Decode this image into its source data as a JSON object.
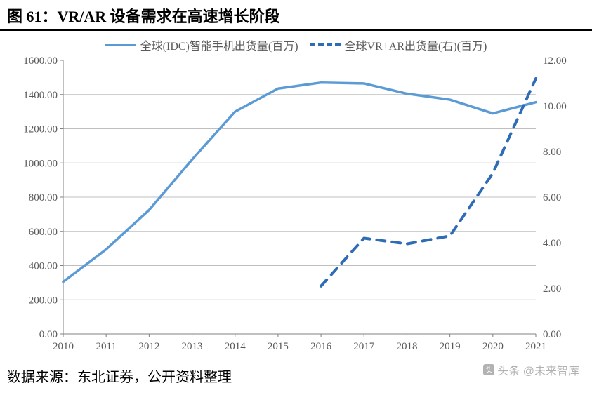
{
  "title": "图 61：VR/AR 设备需求在高速增长阶段",
  "source": "数据来源：东北证券，公开资料整理",
  "watermark": "头条 @未来智库",
  "chart": {
    "type": "line-dual-axis",
    "background_color": "#ffffff",
    "grid_color": "#bfbfbf",
    "axis_color": "#808080",
    "text_color": "#595959",
    "label_fontsize": 15,
    "legend_fontsize": 16,
    "categories": [
      "2010",
      "2011",
      "2012",
      "2013",
      "2014",
      "2015",
      "2016",
      "2017",
      "2018",
      "2019",
      "2020",
      "2021"
    ],
    "left_axis": {
      "min": 0,
      "max": 1600,
      "tick_step": 200,
      "tick_format": "0.00"
    },
    "right_axis": {
      "min": 0,
      "max": 12,
      "tick_step": 2,
      "tick_format": "0.00"
    },
    "series": [
      {
        "id": "smartphone",
        "axis": "left",
        "label": "全球(IDC)智能手机出货量(百万)",
        "color": "#5b9bd5",
        "line_width": 3.5,
        "dash": null,
        "values": [
          305,
          495,
          725,
          1020,
          1300,
          1435,
          1470,
          1465,
          1405,
          1370,
          1290,
          1355
        ]
      },
      {
        "id": "vr_ar",
        "axis": "right",
        "label": "全球VR+AR出货量(右)(百万)",
        "color": "#2e6db5",
        "line_width": 4,
        "dash": "12,10",
        "values": [
          null,
          null,
          null,
          null,
          null,
          null,
          2.1,
          4.2,
          3.95,
          4.3,
          7.05,
          11.2
        ]
      }
    ]
  }
}
